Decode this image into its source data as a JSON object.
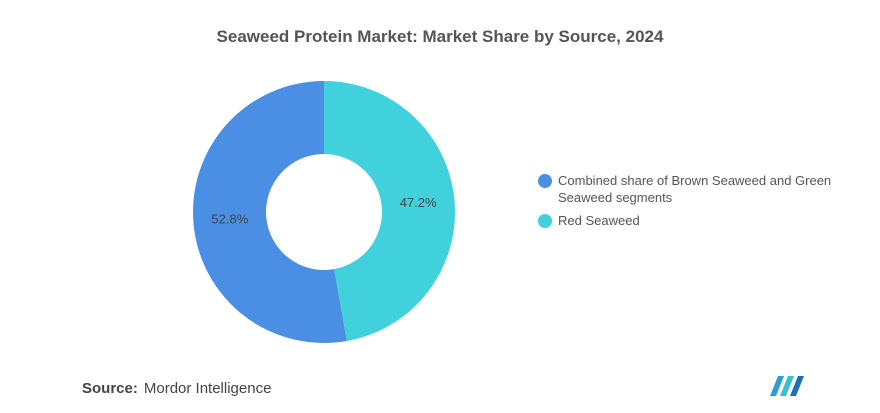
{
  "chart_data": {
    "type": "donut",
    "title": "Seaweed Protein Market: Market Share by Source, 2024",
    "categories": [
      "Combined share of Brown Seaweed and Green Seaweed segments",
      "Red Seaweed"
    ],
    "values": [
      52.8,
      47.2
    ],
    "value_labels": [
      "52.8%",
      "47.2%"
    ],
    "colors": [
      "#4a8fe3",
      "#40d1dc"
    ]
  },
  "source": {
    "label": "Source:",
    "text": "Mordor Intelligence"
  }
}
